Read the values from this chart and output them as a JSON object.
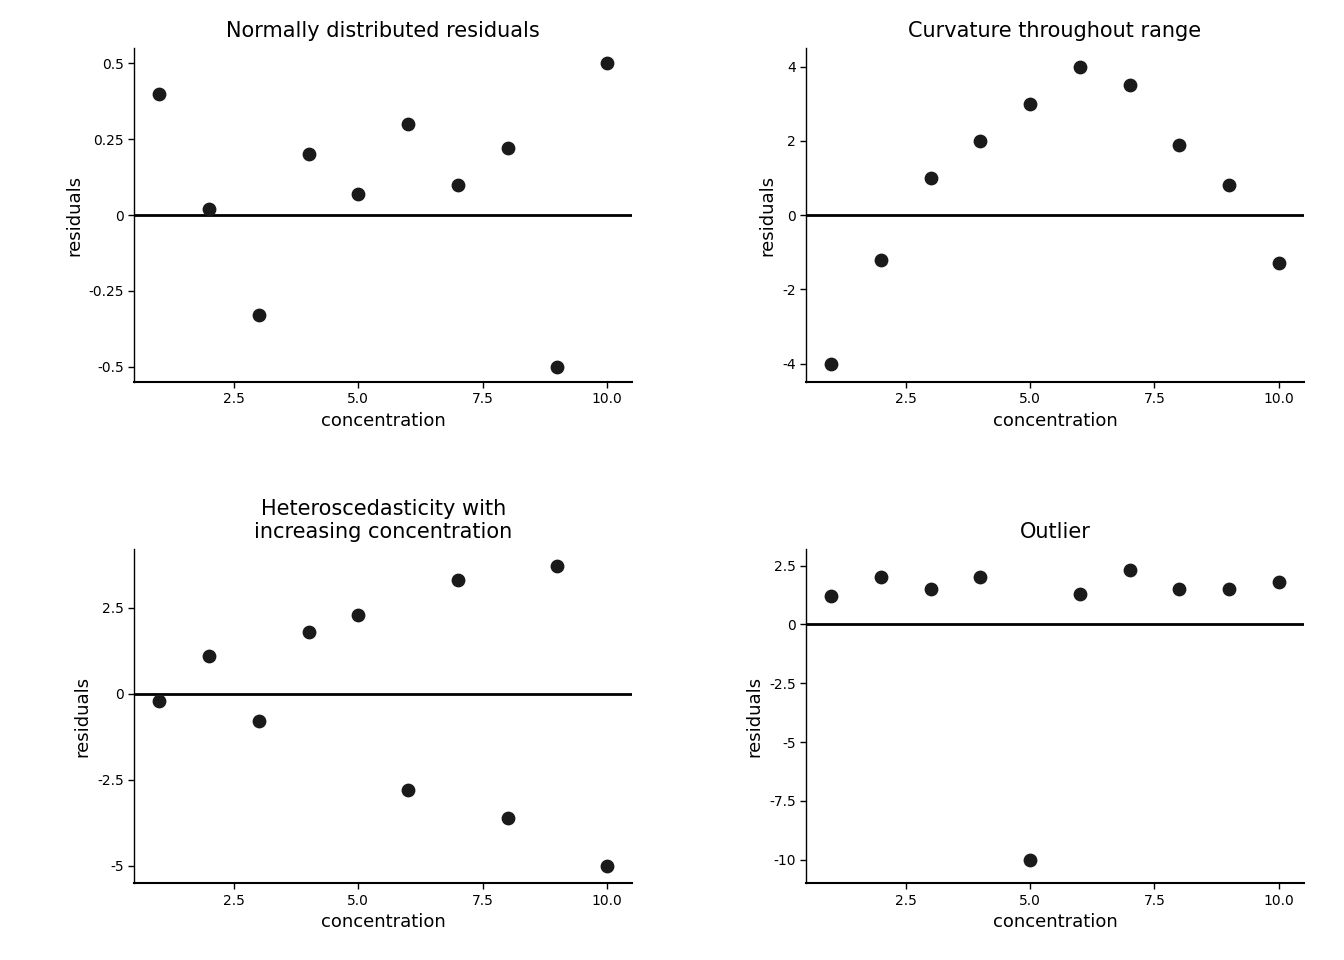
{
  "plot1": {
    "title": "Normally distributed residuals",
    "x": [
      1,
      2,
      3,
      4,
      5,
      6,
      7,
      8,
      9,
      10
    ],
    "y": [
      0.4,
      0.02,
      -0.33,
      0.2,
      0.07,
      0.3,
      0.1,
      0.22,
      -0.5,
      0.5
    ],
    "ylim": [
      -0.55,
      0.55
    ],
    "yticks": [
      -0.5,
      -0.25,
      0.0,
      0.25,
      0.5
    ],
    "xlim": [
      0.5,
      10.5
    ],
    "xticks": [
      2.5,
      5.0,
      7.5,
      10.0
    ]
  },
  "plot2": {
    "title": "Curvature throughout range",
    "x": [
      1,
      2,
      3,
      4,
      5,
      6,
      7,
      8,
      9,
      10
    ],
    "y": [
      -4.0,
      -1.2,
      1.0,
      2.0,
      3.0,
      4.0,
      3.5,
      1.9,
      0.8,
      -1.3
    ],
    "ylim": [
      -4.5,
      4.5
    ],
    "yticks": [
      -4,
      -2,
      0,
      2,
      4
    ],
    "xlim": [
      0.5,
      10.5
    ],
    "xticks": [
      2.5,
      5.0,
      7.5,
      10.0
    ]
  },
  "plot3": {
    "title": "Heteroscedasticity with\nincreasing concentration",
    "x": [
      1,
      2,
      3,
      4,
      5,
      6,
      7,
      8,
      9,
      10
    ],
    "y": [
      -0.2,
      1.1,
      -0.8,
      1.8,
      2.3,
      -2.8,
      3.3,
      -3.6,
      3.7,
      -5.0
    ],
    "ylim": [
      -5.5,
      4.2
    ],
    "yticks": [
      -5.0,
      -2.5,
      0.0,
      2.5
    ],
    "xlim": [
      0.5,
      10.5
    ],
    "xticks": [
      2.5,
      5.0,
      7.5,
      10.0
    ]
  },
  "plot4": {
    "title": "Outlier",
    "x": [
      1,
      2,
      3,
      4,
      5,
      6,
      7,
      8,
      9,
      10
    ],
    "y": [
      1.2,
      2.0,
      1.5,
      2.0,
      -10.0,
      1.3,
      2.3,
      1.5,
      1.5,
      1.8
    ],
    "ylim": [
      -11.0,
      3.2
    ],
    "yticks": [
      -10.0,
      -7.5,
      -5.0,
      -2.5,
      0.0,
      2.5
    ],
    "xlim": [
      0.5,
      10.5
    ],
    "xticks": [
      2.5,
      5.0,
      7.5,
      10.0
    ]
  },
  "xlabel": "concentration",
  "ylabel": "residuals",
  "dot_color": "#1a1a1a",
  "dot_size": 80,
  "hline_color": "#000000",
  "hline_lw": 2.0,
  "bg_color": "#ffffff",
  "title_fontsize": 15,
  "label_fontsize": 13,
  "tick_fontsize": 11
}
